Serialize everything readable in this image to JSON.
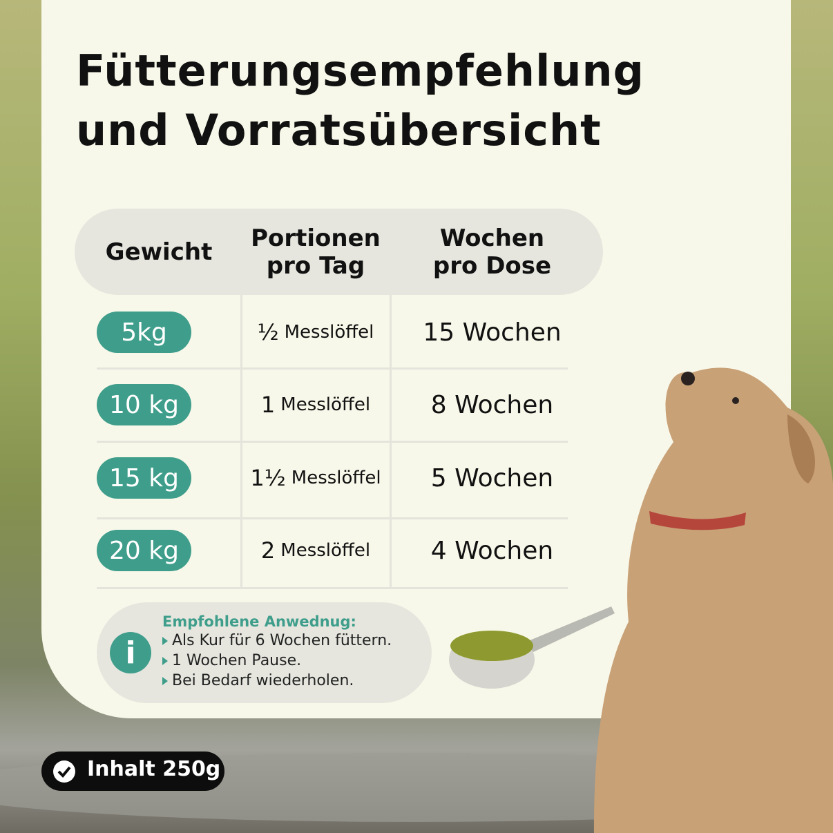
{
  "title": {
    "lines": [
      "Fütterungsempfehlung",
      "und Vorratsübersicht"
    ]
  },
  "table": {
    "header": [
      [
        "Gewicht"
      ],
      [
        "Portionen",
        "pro Tag"
      ],
      [
        "Wochen",
        "pro Dose"
      ]
    ],
    "rows": [
      {
        "weight": "5kg",
        "portion": {
          "amount": "½",
          "unit": "Messlöffel"
        },
        "weeks": "15 Wochen"
      },
      {
        "weight": "10 kg",
        "portion": {
          "amount": "1",
          "unit": "Messlöffel"
        },
        "weeks": "8 Wochen"
      },
      {
        "weight": "15 kg",
        "portion": {
          "amount": "1½",
          "unit": "Messlöffel"
        },
        "weeks": "5 Wochen"
      },
      {
        "weight": "20 kg",
        "portion": {
          "amount": "2",
          "unit": "Messlöffel"
        },
        "weeks": "4 Wochen"
      }
    ]
  },
  "info": {
    "icon": "i",
    "heading": "Empfohlene Anwednug:",
    "items": [
      "Als Kur für 6 Wochen füttern.",
      "1 Wochen Pause.",
      "Bei Bedarf wiederholen."
    ]
  },
  "badge": {
    "label": "Inhalt 250g"
  }
}
